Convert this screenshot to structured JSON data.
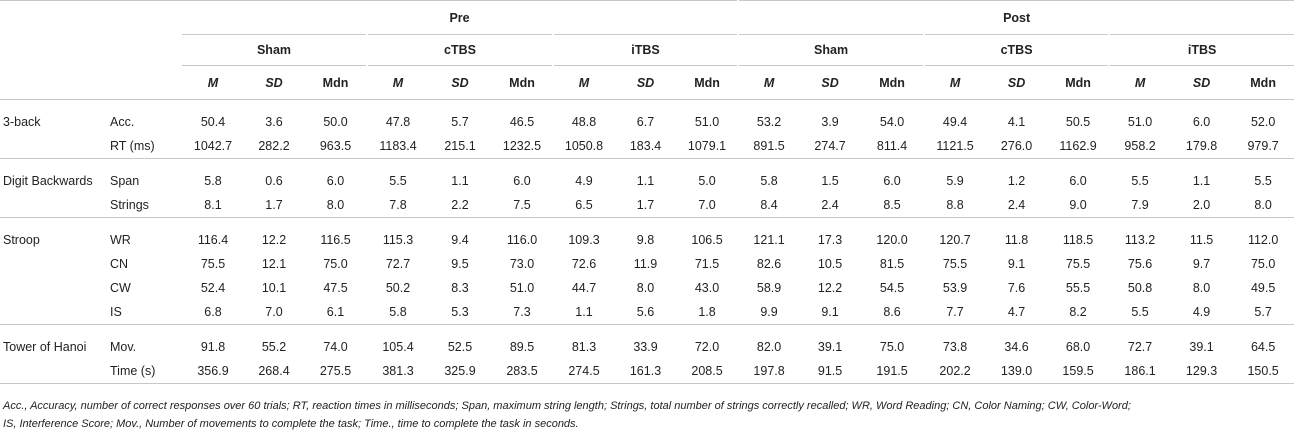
{
  "header": {
    "groups": [
      "Pre",
      "Post"
    ],
    "conditions": [
      "Sham",
      "cTBS",
      "iTBS",
      "Sham",
      "cTBS",
      "iTBS"
    ],
    "stats": [
      "M",
      "SD",
      "Mdn"
    ]
  },
  "tasks": [
    {
      "name": "3-back",
      "rows": [
        {
          "measure": "Acc.",
          "values": [
            "50.4",
            "3.6",
            "50.0",
            "47.8",
            "5.7",
            "46.5",
            "48.8",
            "6.7",
            "51.0",
            "53.2",
            "3.9",
            "54.0",
            "49.4",
            "4.1",
            "50.5",
            "51.0",
            "6.0",
            "52.0"
          ]
        },
        {
          "measure": "RT (ms)",
          "values": [
            "1042.7",
            "282.2",
            "963.5",
            "1183.4",
            "215.1",
            "1232.5",
            "1050.8",
            "183.4",
            "1079.1",
            "891.5",
            "274.7",
            "811.4",
            "1121.5",
            "276.0",
            "1162.9",
            "958.2",
            "179.8",
            "979.7"
          ]
        }
      ]
    },
    {
      "name": "Digit Backwards",
      "rows": [
        {
          "measure": "Span",
          "values": [
            "5.8",
            "0.6",
            "6.0",
            "5.5",
            "1.1",
            "6.0",
            "4.9",
            "1.1",
            "5.0",
            "5.8",
            "1.5",
            "6.0",
            "5.9",
            "1.2",
            "6.0",
            "5.5",
            "1.1",
            "5.5"
          ]
        },
        {
          "measure": "Strings",
          "values": [
            "8.1",
            "1.7",
            "8.0",
            "7.8",
            "2.2",
            "7.5",
            "6.5",
            "1.7",
            "7.0",
            "8.4",
            "2.4",
            "8.5",
            "8.8",
            "2.4",
            "9.0",
            "7.9",
            "2.0",
            "8.0"
          ]
        }
      ]
    },
    {
      "name": "Stroop",
      "rows": [
        {
          "measure": "WR",
          "values": [
            "116.4",
            "12.2",
            "116.5",
            "115.3",
            "9.4",
            "116.0",
            "109.3",
            "9.8",
            "106.5",
            "121.1",
            "17.3",
            "120.0",
            "120.7",
            "11.8",
            "118.5",
            "113.2",
            "11.5",
            "112.0"
          ]
        },
        {
          "measure": "CN",
          "values": [
            "75.5",
            "12.1",
            "75.0",
            "72.7",
            "9.5",
            "73.0",
            "72.6",
            "11.9",
            "71.5",
            "82.6",
            "10.5",
            "81.5",
            "75.5",
            "9.1",
            "75.5",
            "75.6",
            "9.7",
            "75.0"
          ]
        },
        {
          "measure": "CW",
          "values": [
            "52.4",
            "10.1",
            "47.5",
            "50.2",
            "8.3",
            "51.0",
            "44.7",
            "8.0",
            "43.0",
            "58.9",
            "12.2",
            "54.5",
            "53.9",
            "7.6",
            "55.5",
            "50.8",
            "8.0",
            "49.5"
          ]
        },
        {
          "measure": "IS",
          "values": [
            "6.8",
            "7.0",
            "6.1",
            "5.8",
            "5.3",
            "7.3",
            "1.1",
            "5.6",
            "1.8",
            "9.9",
            "9.1",
            "8.6",
            "7.7",
            "4.7",
            "8.2",
            "5.5",
            "4.9",
            "5.7"
          ]
        }
      ]
    },
    {
      "name": "Tower of Hanoi",
      "rows": [
        {
          "measure": "Mov.",
          "values": [
            "91.8",
            "55.2",
            "74.0",
            "105.4",
            "52.5",
            "89.5",
            "81.3",
            "33.9",
            "72.0",
            "82.0",
            "39.1",
            "75.0",
            "73.8",
            "34.6",
            "68.0",
            "72.7",
            "39.1",
            "64.5"
          ]
        },
        {
          "measure": "Time (s)",
          "values": [
            "356.9",
            "268.4",
            "275.5",
            "381.3",
            "325.9",
            "283.5",
            "274.5",
            "161.3",
            "208.5",
            "197.8",
            "91.5",
            "191.5",
            "202.2",
            "139.0",
            "159.5",
            "186.1",
            "129.3",
            "150.5"
          ]
        }
      ]
    }
  ],
  "footnote": {
    "line1": "Acc., Accuracy, number of correct responses over 60 trials; RT, reaction times in milliseconds; Span, maximum string length; Strings, total number of strings correctly recalled; WR, Word Reading; CN, Color Naming; CW, Color-Word;",
    "line2": "IS, Interference Score; Mov., Number of movements to complete the task; Time., time to complete the task in seconds."
  }
}
